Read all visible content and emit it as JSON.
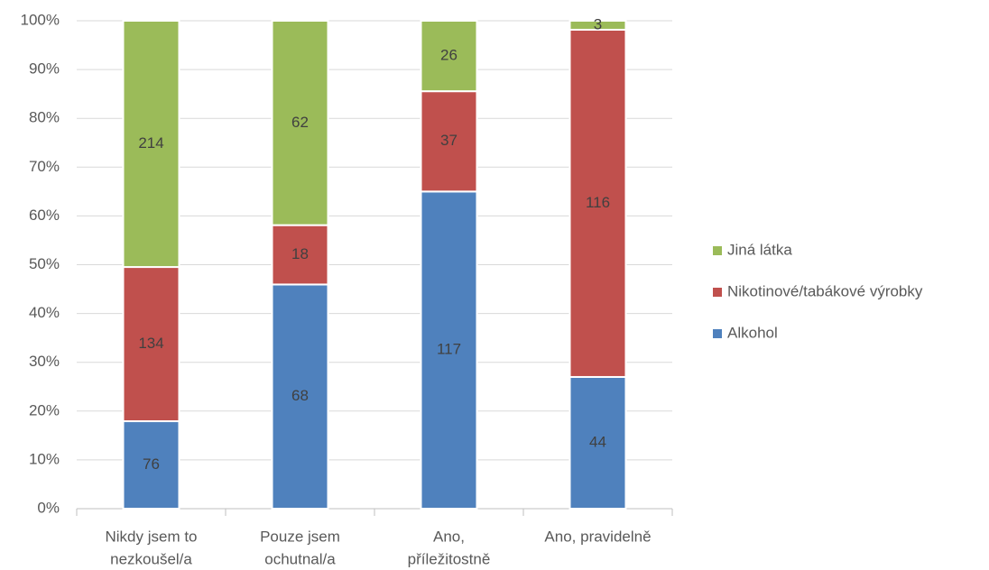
{
  "chart_data": {
    "type": "bar",
    "stacked": "percent",
    "categories": [
      [
        "Nikdy jsem to",
        "nezkoušel/a"
      ],
      [
        "Pouze jsem",
        "ochutnal/a"
      ],
      [
        "Ano,",
        "příležitostně"
      ],
      [
        "Ano, pravidelně"
      ]
    ],
    "series": [
      {
        "name": "Alkohol",
        "color": "#4f81bd",
        "values": [
          76,
          68,
          117,
          44
        ]
      },
      {
        "name": "Nikotinové/tabákové výrobky",
        "color": "#c0504d",
        "values": [
          134,
          18,
          37,
          116
        ]
      },
      {
        "name": "Jiná látka",
        "color": "#9bbb59",
        "values": [
          214,
          62,
          26,
          3
        ]
      }
    ],
    "ylim": [
      0,
      100
    ],
    "yticks": [
      {
        "value": 0,
        "label": "0%"
      },
      {
        "value": 10,
        "label": "10%"
      },
      {
        "value": 20,
        "label": "20%"
      },
      {
        "value": 30,
        "label": "30%"
      },
      {
        "value": 40,
        "label": "40%"
      },
      {
        "value": 50,
        "label": "50%"
      },
      {
        "value": 60,
        "label": "60%"
      },
      {
        "value": 70,
        "label": "70%"
      },
      {
        "value": 80,
        "label": "80%"
      },
      {
        "value": 90,
        "label": "90%"
      },
      {
        "value": 100,
        "label": "100%"
      }
    ],
    "grid": true,
    "legend": "right"
  }
}
